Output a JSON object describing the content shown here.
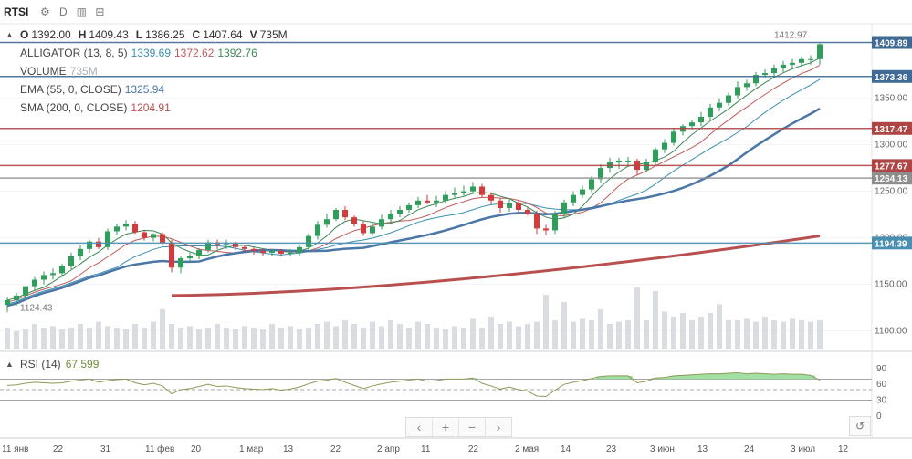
{
  "toolbar": {
    "symbol": "RTSI",
    "icons": [
      "gear-icon",
      "interval-icon",
      "bar-chart-icon",
      "add-indicator-icon"
    ],
    "interval_label": "D"
  },
  "legend": {
    "ohlc": {
      "o_k": "O",
      "o": "1392.00",
      "h_k": "H",
      "h": "1409.43",
      "l_k": "L",
      "l": "1386.25",
      "c_k": "C",
      "c": "1407.64",
      "v_k": "V",
      "v": "735M"
    },
    "alligator": {
      "label": "ALLIGATOR (13, 8, 5)",
      "jaw": "1339.69",
      "teeth": "1372.62",
      "lips": "1392.76"
    },
    "volume": {
      "label": "VOLUME",
      "value": "735M"
    },
    "ema": {
      "label": "EMA (55, 0, CLOSE)",
      "value": "1325.94"
    },
    "sma": {
      "label": "SMA (200, 0, CLOSE)",
      "value": "1204.91"
    }
  },
  "rsi": {
    "label": "RSI (14)",
    "value": "67.599"
  },
  "colors": {
    "up": "#2e9e5b",
    "down": "#d63a3a",
    "volume": "#d9dde1",
    "jaw": "#3a8fb0",
    "teeth": "#c05a5a",
    "lips": "#3d8a55",
    "ema": "#4a76a8",
    "sma": "#b8504f",
    "rsi": "#8f9a5a",
    "rsi_fill": "#79d27a"
  },
  "chart_data": {
    "type": "candlestick",
    "y_axis_ticks": [
      "1100.00",
      "1150.00",
      "1200.00",
      "1250.00",
      "1300.00",
      "1350.00"
    ],
    "ylim": [
      1080,
      1430
    ],
    "x_axis_ticks": [
      "11 янв",
      "22",
      "31",
      "11 фев",
      "20",
      "1 мар",
      "13",
      "22",
      "2 апр",
      "11",
      "22",
      "2 мая",
      "14",
      "23",
      "3 июн",
      "13",
      "24",
      "3 июл",
      "12"
    ],
    "candles": {
      "o": [
        1128,
        1133,
        1138,
        1148,
        1155,
        1160,
        1162,
        1170,
        1180,
        1188,
        1196,
        1190,
        1207,
        1212,
        1215,
        1206,
        1200,
        1204,
        1195,
        1168,
        1178,
        1180,
        1187,
        1195,
        1193,
        1194,
        1190,
        1188,
        1186,
        1184,
        1186,
        1183,
        1184,
        1190,
        1202,
        1214,
        1220,
        1230,
        1222,
        1215,
        1205,
        1212,
        1220,
        1226,
        1230,
        1235,
        1240,
        1238,
        1240,
        1246,
        1248,
        1250,
        1255,
        1246,
        1240,
        1232,
        1237,
        1230,
        1226,
        1210,
        1208,
        1225,
        1238,
        1246,
        1252,
        1263,
        1275,
        1281,
        1283,
        1283,
        1273,
        1281,
        1295,
        1302,
        1314,
        1320,
        1324,
        1330,
        1340,
        1345,
        1353,
        1362,
        1366,
        1375,
        1377,
        1382,
        1386,
        1388,
        1392,
        1392
      ],
      "h": [
        1136,
        1141,
        1148,
        1158,
        1164,
        1167,
        1172,
        1184,
        1192,
        1198,
        1200,
        1210,
        1215,
        1219,
        1218,
        1208,
        1205,
        1206,
        1198,
        1180,
        1184,
        1189,
        1198,
        1198,
        1198,
        1196,
        1192,
        1190,
        1188,
        1188,
        1188,
        1188,
        1193,
        1205,
        1218,
        1226,
        1232,
        1234,
        1224,
        1218,
        1216,
        1225,
        1230,
        1234,
        1238,
        1244,
        1246,
        1245,
        1250,
        1254,
        1256,
        1260,
        1258,
        1249,
        1243,
        1241,
        1240,
        1233,
        1229,
        1214,
        1229,
        1241,
        1250,
        1256,
        1266,
        1279,
        1286,
        1286,
        1287,
        1285,
        1285,
        1297,
        1306,
        1318,
        1322,
        1327,
        1335,
        1344,
        1350,
        1356,
        1368,
        1370,
        1378,
        1381,
        1386,
        1390,
        1392,
        1395,
        1396,
        1409
      ],
      "l": [
        1120,
        1127,
        1133,
        1143,
        1150,
        1155,
        1158,
        1166,
        1176,
        1184,
        1188,
        1187,
        1203,
        1208,
        1204,
        1197,
        1196,
        1193,
        1163,
        1162,
        1174,
        1177,
        1184,
        1188,
        1188,
        1187,
        1185,
        1182,
        1181,
        1181,
        1180,
        1180,
        1181,
        1187,
        1198,
        1211,
        1218,
        1219,
        1212,
        1202,
        1202,
        1209,
        1216,
        1222,
        1227,
        1232,
        1236,
        1233,
        1237,
        1243,
        1245,
        1247,
        1243,
        1236,
        1227,
        1228,
        1227,
        1224,
        1204,
        1203,
        1204,
        1221,
        1234,
        1243,
        1249,
        1259,
        1270,
        1274,
        1276,
        1268,
        1270,
        1278,
        1291,
        1299,
        1310,
        1316,
        1320,
        1327,
        1336,
        1342,
        1350,
        1358,
        1363,
        1371,
        1373,
        1378,
        1382,
        1384,
        1386,
        1386
      ],
      "c": [
        1133,
        1138,
        1148,
        1155,
        1160,
        1162,
        1170,
        1180,
        1188,
        1196,
        1190,
        1207,
        1212,
        1215,
        1206,
        1200,
        1204,
        1195,
        1168,
        1178,
        1180,
        1187,
        1195,
        1193,
        1194,
        1190,
        1188,
        1186,
        1184,
        1186,
        1183,
        1184,
        1190,
        1202,
        1214,
        1220,
        1230,
        1222,
        1215,
        1205,
        1212,
        1220,
        1226,
        1230,
        1235,
        1240,
        1238,
        1240,
        1246,
        1248,
        1250,
        1255,
        1246,
        1240,
        1232,
        1237,
        1230,
        1226,
        1210,
        1208,
        1225,
        1238,
        1246,
        1252,
        1263,
        1275,
        1281,
        1283,
        1283,
        1273,
        1281,
        1295,
        1302,
        1314,
        1320,
        1324,
        1330,
        1340,
        1345,
        1353,
        1362,
        1366,
        1375,
        1377,
        1382,
        1386,
        1388,
        1392,
        1392,
        1408
      ]
    },
    "volume_relative": [
      0.3,
      0.25,
      0.28,
      0.35,
      0.3,
      0.32,
      0.28,
      0.3,
      0.35,
      0.3,
      0.38,
      0.32,
      0.3,
      0.28,
      0.35,
      0.3,
      0.38,
      0.55,
      0.35,
      0.3,
      0.32,
      0.28,
      0.3,
      0.35,
      0.3,
      0.28,
      0.32,
      0.3,
      0.28,
      0.35,
      0.3,
      0.32,
      0.28,
      0.3,
      0.35,
      0.38,
      0.32,
      0.4,
      0.35,
      0.3,
      0.38,
      0.32,
      0.4,
      0.35,
      0.3,
      0.38,
      0.35,
      0.3,
      0.28,
      0.32,
      0.3,
      0.42,
      0.3,
      0.45,
      0.35,
      0.38,
      0.32,
      0.35,
      0.38,
      0.75,
      0.4,
      0.65,
      0.38,
      0.42,
      0.4,
      0.55,
      0.35,
      0.38,
      0.4,
      0.85,
      0.4,
      0.8,
      0.52,
      0.45,
      0.5,
      0.4,
      0.45,
      0.5,
      0.62,
      0.4,
      0.4,
      0.42,
      0.38,
      0.45,
      0.4,
      0.38,
      0.42,
      0.4,
      0.38,
      0.4
    ],
    "price_markers": [
      {
        "label": "1409.89",
        "value": 1409.89,
        "color": "#3f6a95"
      },
      {
        "label": "1373.36",
        "value": 1373.36,
        "color": "#3f6a95"
      },
      {
        "label": "1317.47",
        "value": 1317.47,
        "color": "#b04545"
      },
      {
        "label": "1277.67",
        "value": 1277.67,
        "color": "#b04545"
      },
      {
        "label": "1264.13",
        "value": 1264.13,
        "color": "#8e8e8e"
      },
      {
        "label": "1194.39",
        "value": 1194.39,
        "color": "#4a8fb0"
      }
    ],
    "annotations": [
      {
        "label": "1412.97",
        "value": 1412.97
      },
      {
        "label": "1124.43",
        "value": 1124.43
      }
    ],
    "rsi": {
      "ticks": [
        "90",
        "60",
        "30",
        "0"
      ],
      "levels": [
        70,
        50,
        30
      ],
      "values": [
        58,
        59,
        62,
        64,
        63,
        62,
        63,
        66,
        68,
        70,
        64,
        67,
        69,
        70,
        63,
        59,
        62,
        57,
        42,
        50,
        52,
        56,
        60,
        56,
        57,
        54,
        52,
        51,
        50,
        52,
        49,
        51,
        55,
        61,
        66,
        68,
        71,
        64,
        58,
        52,
        57,
        61,
        64,
        66,
        68,
        70,
        66,
        67,
        70,
        70,
        70,
        72,
        62,
        57,
        51,
        55,
        50,
        47,
        38,
        37,
        49,
        60,
        64,
        67,
        71,
        75,
        76,
        76,
        76,
        63,
        66,
        72,
        73,
        76,
        77,
        78,
        79,
        80,
        80,
        81,
        82,
        80,
        81,
        80,
        79,
        80,
        79,
        79,
        77,
        68
      ]
    }
  }
}
